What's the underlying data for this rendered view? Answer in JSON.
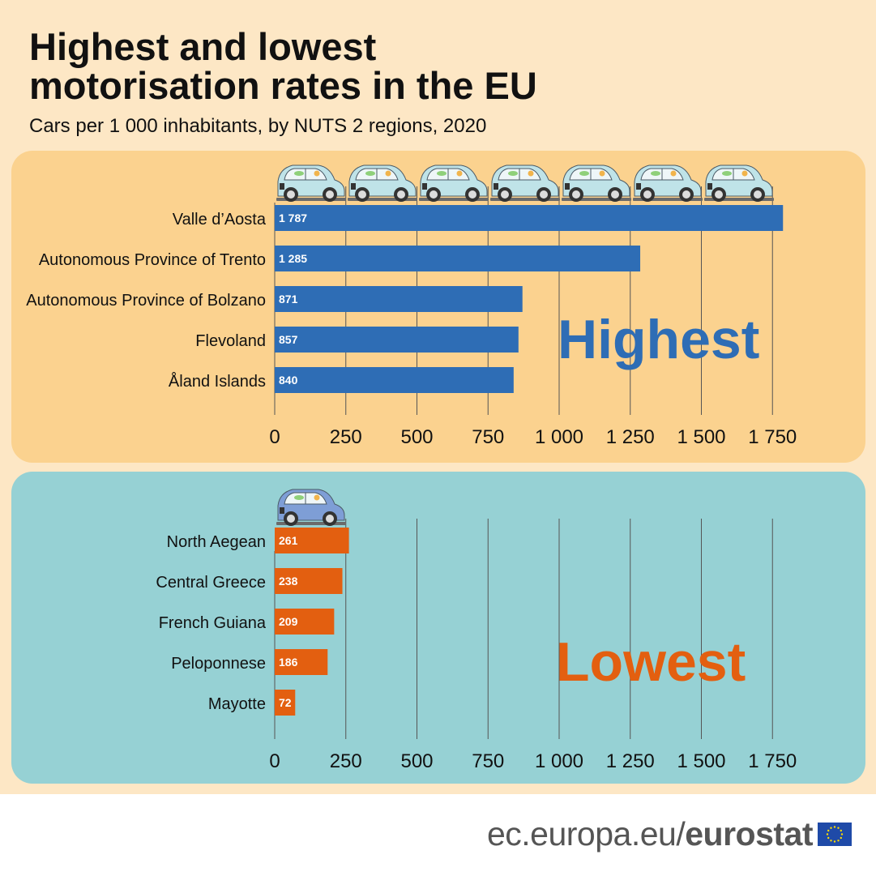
{
  "title_line1": "Highest and lowest",
  "title_line2": "motorisation rates in the EU",
  "subtitle": "Cars per 1 000 inhabitants, by NUTS 2 regions, 2020",
  "footer": {
    "site": "ec.europa.eu/",
    "brand": "eurostat"
  },
  "colors": {
    "highest_bar": "#2e6db5",
    "lowest_bar": "#e35f10",
    "highest_panel": "#fbd28f",
    "lowest_panel": "#96d1d4"
  },
  "chart_data": [
    {
      "type": "bar",
      "orientation": "horizontal",
      "label": "Highest",
      "categories": [
        "Valle d’Aosta",
        "Autonomous Province of Trento",
        "Autonomous Province of Bolzano",
        "Flevoland",
        "Åland Islands"
      ],
      "values": [
        1787,
        1285,
        871,
        857,
        840
      ],
      "value_labels": [
        "1 787",
        "1 285",
        "871",
        "857",
        "840"
      ],
      "xlim": [
        0,
        1750
      ],
      "ticks": [
        0,
        250,
        500,
        750,
        1000,
        1250,
        1500,
        1750
      ],
      "tick_labels": [
        "0",
        "250",
        "500",
        "750",
        "1 000",
        "1 250",
        "1 500",
        "1 750"
      ],
      "grid": true,
      "icon": "car-icon",
      "icon_count": 7
    },
    {
      "type": "bar",
      "orientation": "horizontal",
      "label": "Lowest",
      "categories": [
        "North Aegean",
        "Central Greece",
        "French Guiana",
        "Peloponnese",
        "Mayotte"
      ],
      "values": [
        261,
        238,
        209,
        186,
        72
      ],
      "value_labels": [
        "261",
        "238",
        "209",
        "186",
        "72"
      ],
      "xlim": [
        0,
        1750
      ],
      "ticks": [
        0,
        250,
        500,
        750,
        1000,
        1250,
        1500,
        1750
      ],
      "tick_labels": [
        "0",
        "250",
        "500",
        "750",
        "1 000",
        "1 250",
        "1 500",
        "1 750"
      ],
      "grid": true,
      "icon": "car-icon",
      "icon_count": 1
    }
  ]
}
